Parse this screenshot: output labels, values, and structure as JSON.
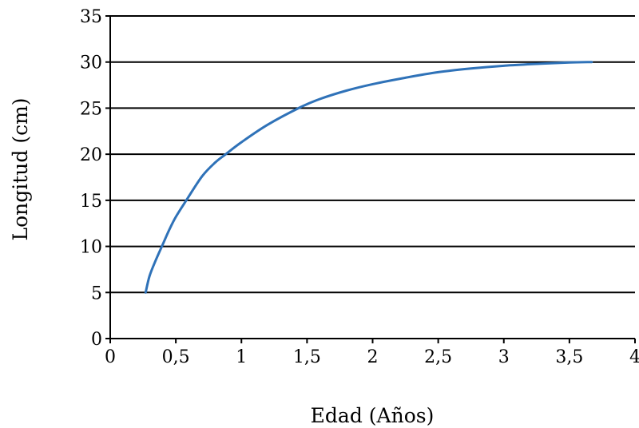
{
  "chart_data": {
    "type": "line",
    "xlabel": "Edad (Años)",
    "ylabel": "Longitud (cm)",
    "xlim": [
      0,
      4
    ],
    "ylim": [
      0,
      35
    ],
    "xticks": [
      0,
      0.5,
      1,
      1.5,
      2,
      2.5,
      3,
      3.5,
      4
    ],
    "xtick_labels": [
      "0",
      "0,5",
      "1",
      "1,5",
      "2",
      "2,5",
      "3",
      "3,5",
      "4"
    ],
    "yticks": [
      0,
      5,
      10,
      15,
      20,
      25,
      30,
      35
    ],
    "ytick_labels": [
      "0",
      "5",
      "10",
      "15",
      "20",
      "25",
      "30",
      "35"
    ],
    "grid": "horizontal",
    "line_color": "#2f72b8",
    "series": [
      {
        "x": [
          0.27,
          0.3,
          0.35,
          0.4,
          0.45,
          0.5,
          0.58,
          0.7,
          0.8,
          0.88,
          1.0,
          1.2,
          1.45,
          1.6,
          1.8,
          2.0,
          2.25,
          2.5,
          2.75,
          3.0,
          3.25,
          3.5,
          3.67
        ],
        "y": [
          5.0,
          6.8,
          8.6,
          10.2,
          11.8,
          13.2,
          15.0,
          17.6,
          19.1,
          20.0,
          21.3,
          23.2,
          25.1,
          26.0,
          26.9,
          27.6,
          28.3,
          28.9,
          29.3,
          29.6,
          29.8,
          29.95,
          30.0
        ]
      }
    ]
  }
}
